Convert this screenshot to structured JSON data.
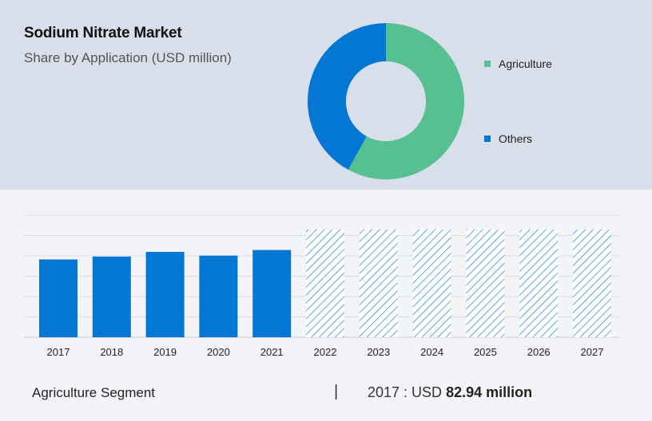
{
  "header": {
    "title": "Sodium Nitrate Market",
    "subtitle": "Share by Application (USD million)"
  },
  "colors": {
    "agriculture": "#56c091",
    "others": "#0477d4",
    "bar": "#0477d4",
    "forecast_hatch": "#0477d4",
    "top_panel_bg": "#d8deea",
    "bottom_panel_bg": "#f3f4f8"
  },
  "chart_data": [
    {
      "type": "pie",
      "variant": "donut",
      "labels": [
        "Agriculture",
        "Others"
      ],
      "values": [
        58,
        42
      ],
      "legend_position": "right"
    },
    {
      "type": "bar",
      "categories": [
        "2017",
        "2018",
        "2019",
        "2020",
        "2021",
        "2022",
        "2023",
        "2024",
        "2025",
        "2026",
        "2027"
      ],
      "values": [
        82.94,
        86,
        91,
        87,
        93,
        115,
        115,
        115,
        115,
        115,
        115
      ],
      "forecast_from": "2022",
      "ylim": [
        0,
        130
      ],
      "grid": true,
      "xlabel": "",
      "ylabel": ""
    }
  ],
  "footer": {
    "segment_label": "Agriculture Segment",
    "separator": "|",
    "value_prefix": "2017 : USD ",
    "value_bold": "82.94 million"
  }
}
